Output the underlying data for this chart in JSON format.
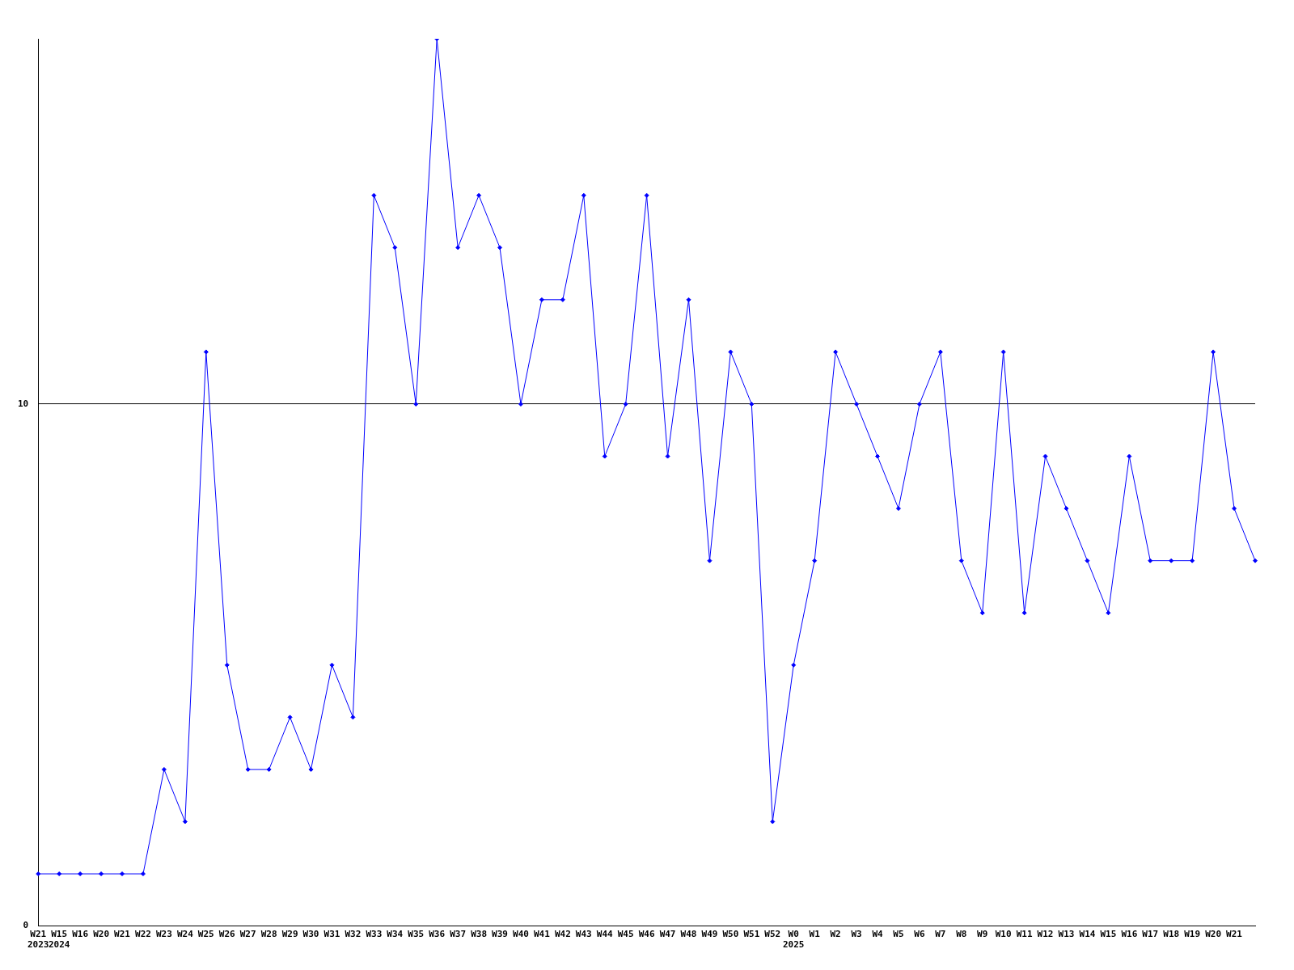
{
  "chart_data": {
    "type": "line",
    "categories": [
      "W21\n2023",
      "W15\n2024",
      "W16",
      "W20",
      "W21",
      "W22",
      "W23",
      "W24",
      "W25",
      "W26",
      "W27",
      "W28",
      "W29",
      "W30",
      "W31",
      "W32",
      "W33",
      "W34",
      "W35",
      "W36",
      "W37",
      "W38",
      "W39",
      "W40",
      "W41",
      "W42",
      "W43",
      "W44",
      "W45",
      "W46",
      "W47",
      "W48",
      "W49",
      "W50",
      "W51",
      "W52",
      "W0\n2025",
      "W1",
      "W2",
      "W3",
      "W4",
      "W5",
      "W6",
      "W7",
      "W8",
      "W9",
      "W10",
      "W11",
      "W12",
      "W13",
      "W14",
      "W15",
      "W16",
      "W17",
      "W18",
      "W19",
      "W20",
      "W21",
      null
    ],
    "series": [
      {
        "color": "#0000ff",
        "values": [
          1,
          1,
          1,
          1,
          1,
          1,
          3,
          2,
          11,
          5,
          3,
          3,
          4,
          3,
          5,
          4,
          14,
          13,
          10,
          17,
          13,
          14,
          13,
          10,
          12,
          12,
          14,
          9,
          10,
          14,
          9,
          12,
          7,
          11,
          10,
          2,
          5,
          7,
          11,
          10,
          9,
          8,
          10,
          11,
          7,
          6,
          11,
          6,
          9,
          8,
          7,
          6,
          9,
          7,
          7,
          7,
          11,
          8,
          7
        ]
      }
    ],
    "ylim": [
      0,
      17
    ],
    "yticks": [
      0,
      10
    ],
    "grid": "y",
    "legend": false,
    "marker": "diamond",
    "line_style": "solid"
  }
}
